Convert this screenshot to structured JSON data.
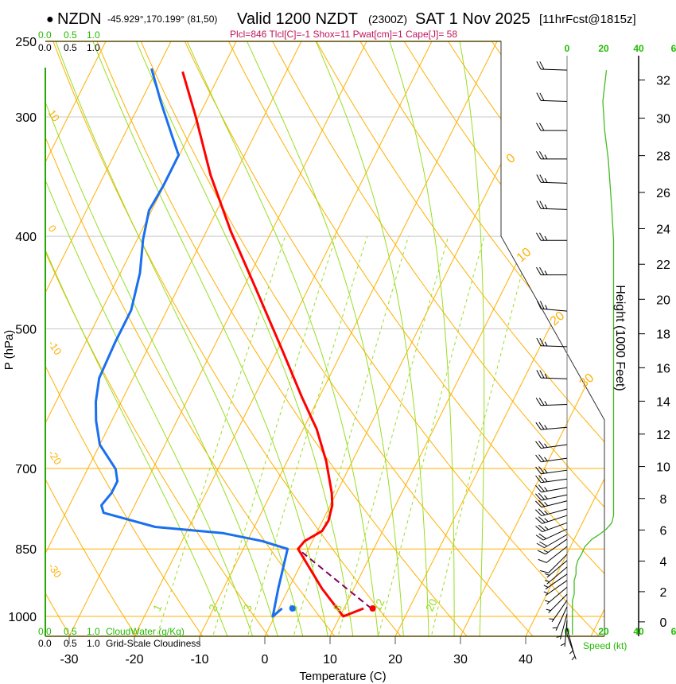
{
  "header": {
    "station_dot": "●",
    "station": "NZDN",
    "coords": "-45.929°,170.199° (81,50)",
    "valid": "Valid 1200 NZDT",
    "utc": "(2300Z)",
    "date": "SAT 1 Nov 2025",
    "forecast": "[11hrFcst@1815z]",
    "indices": "Plcl=846 Tlcl[C]=-1 Shox=11 Pwat[cm]=1 Cape[J]= 58"
  },
  "colors": {
    "temperature": "#ff0000",
    "dewpoint": "#1a6ff0",
    "parcel": "#800060",
    "isotherm": "#ffb000",
    "moist": "#99dd22",
    "cloud_axis": "#22bb00",
    "indices": "#c0135a"
  },
  "cloud": {
    "top_green": [
      "0.0",
      "0.5",
      "1.0"
    ],
    "top_black": [
      "0.0",
      "0.5",
      "1.0"
    ],
    "bottom_green": [
      "0.0",
      "0.5",
      "1.0"
    ],
    "bottom_black": [
      "0.0",
      "0.5",
      "1.0"
    ],
    "cloudwater_label": "CloudWater (g/Kg)",
    "cloudiness_label": "Grid-Scale Cloudiness"
  },
  "chart_data": {
    "type": "line",
    "subtype": "skew-t log-p",
    "xlabel": "Temperature (C)",
    "ylabel": "P (hPa)",
    "y2label": "Height (1000 Feet)",
    "pressure_ticks": [
      250,
      300,
      400,
      500,
      700,
      850,
      1000
    ],
    "temperature_ticks": [
      -30,
      -20,
      -10,
      0,
      10,
      20,
      30,
      40
    ],
    "height_ticks": [
      0,
      2,
      4,
      6,
      8,
      10,
      12,
      14,
      16,
      18,
      20,
      22,
      24,
      26,
      28,
      30,
      32
    ],
    "speed_ticks": [
      "0",
      "20",
      "40",
      "6"
    ],
    "speed_label": "Speed (kt)",
    "isotherm_labels": [
      "0",
      "10",
      "20",
      "30"
    ],
    "dry_adiabat_labels": [
      "10",
      "0",
      "-10",
      "-20",
      "-30"
    ],
    "mixing_ratio_labels": [
      1,
      2,
      3,
      5,
      8,
      12,
      20
    ],
    "ylim_hpa": [
      1050,
      250
    ],
    "temperature": [
      [
        981,
        13.0
      ],
      [
        1000,
        10.5
      ],
      [
        935,
        5.1
      ],
      [
        850,
        -1.6
      ],
      [
        834,
        -1.2
      ],
      [
        814,
        0.7
      ],
      [
        794,
        0.9
      ],
      [
        765,
        0.3
      ],
      [
        743,
        -0.7
      ],
      [
        688,
        -4.0
      ],
      [
        637,
        -7.9
      ],
      [
        590,
        -12.6
      ],
      [
        526,
        -19.3
      ],
      [
        451,
        -28.4
      ],
      [
        395,
        -36.3
      ],
      [
        345,
        -43.7
      ],
      [
        300,
        -50.4
      ],
      [
        269,
        -55.9
      ]
    ],
    "dewpoint": [
      [
        981,
        0.5
      ],
      [
        1000,
        -0.3
      ],
      [
        935,
        -1.6
      ],
      [
        850,
        -3.2
      ],
      [
        834,
        -7.7
      ],
      [
        818,
        -14.4
      ],
      [
        806,
        -25.2
      ],
      [
        779,
        -34.2
      ],
      [
        765,
        -35.1
      ],
      [
        743,
        -34.5
      ],
      [
        722,
        -34.5
      ],
      [
        701,
        -35.7
      ],
      [
        661,
        -40.0
      ],
      [
        624,
        -42.4
      ],
      [
        596,
        -43.9
      ],
      [
        563,
        -45.2
      ],
      [
        516,
        -45.5
      ],
      [
        478,
        -45.5
      ],
      [
        437,
        -47.0
      ],
      [
        403,
        -49.1
      ],
      [
        376,
        -50.4
      ],
      [
        354,
        -50.1
      ],
      [
        329,
        -50.1
      ],
      [
        314,
        -52.6
      ],
      [
        290,
        -56.8
      ],
      [
        267,
        -60.9
      ]
    ],
    "parcel": [
      [
        981,
        14.2
      ],
      [
        915,
        6.5
      ],
      [
        850,
        -1.6
      ]
    ],
    "surface_temperature": [
      981,
      14.4
    ],
    "surface_dewpoint": [
      981,
      2.1
    ],
    "winds": [
      [
        268,
        272,
        22
      ],
      [
        289,
        272,
        20
      ],
      [
        310,
        270,
        21
      ],
      [
        332,
        270,
        23
      ],
      [
        352,
        272,
        24
      ],
      [
        375,
        272,
        25
      ],
      [
        404,
        270,
        26
      ],
      [
        439,
        270,
        26
      ],
      [
        479,
        275,
        26
      ],
      [
        522,
        272,
        26
      ],
      [
        564,
        272,
        26
      ],
      [
        600,
        268,
        26
      ],
      [
        634,
        265,
        26
      ],
      [
        661,
        262,
        26
      ],
      [
        683,
        262,
        26
      ],
      [
        703,
        262,
        26
      ],
      [
        718,
        262,
        26
      ],
      [
        733,
        260,
        26
      ],
      [
        746,
        258,
        26
      ],
      [
        757,
        256,
        26
      ],
      [
        772,
        255,
        26
      ],
      [
        784,
        252,
        26
      ],
      [
        798,
        250,
        25
      ],
      [
        810,
        245,
        22
      ],
      [
        821,
        240,
        18
      ],
      [
        830,
        235,
        14
      ],
      [
        845,
        232,
        10
      ],
      [
        861,
        225,
        8
      ],
      [
        874,
        230,
        6
      ],
      [
        888,
        230,
        5
      ],
      [
        903,
        235,
        5
      ],
      [
        917,
        235,
        4
      ],
      [
        932,
        230,
        4
      ],
      [
        948,
        225,
        4
      ],
      [
        962,
        215,
        3
      ],
      [
        977,
        205,
        3
      ],
      [
        994,
        195,
        3
      ],
      [
        1010,
        185,
        3
      ],
      [
        1029,
        165,
        3
      ],
      [
        1045,
        160,
        3
      ]
    ]
  }
}
